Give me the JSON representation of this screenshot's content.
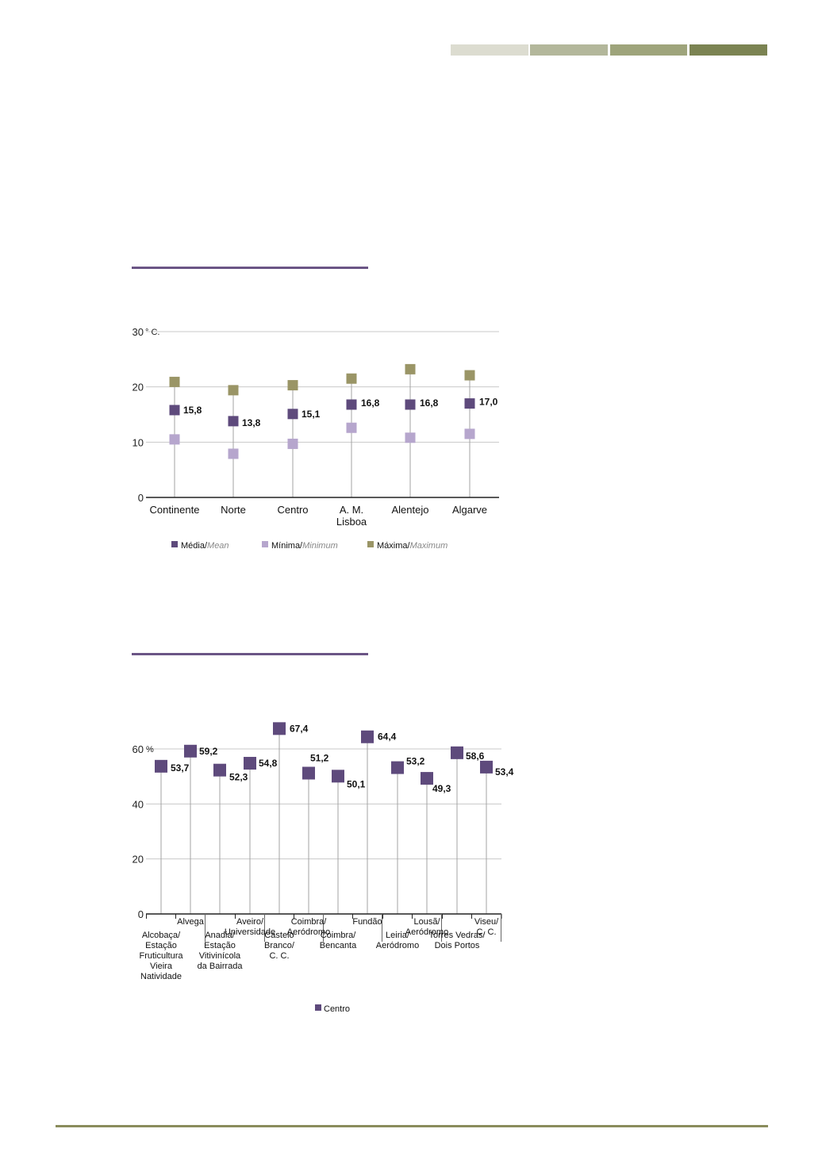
{
  "header": {
    "strip_colors": [
      "#dcdcd0",
      "#b3b79b",
      "#9ea47b",
      "#7b8352"
    ]
  },
  "colors": {
    "mean": "#5e4a7c",
    "minimum": "#b6a6cd",
    "maximum": "#9a9566",
    "rule": "#6b5585",
    "footer": "#8a8c5c"
  },
  "chart_data": [
    {
      "type": "scatter",
      "title": "",
      "ylabel": "° C.",
      "ylim": [
        0,
        30
      ],
      "yticks": [
        0,
        10,
        20,
        30
      ],
      "ytick_labels": [
        "0",
        "10",
        "20",
        "30"
      ],
      "grid": true,
      "legend_position": "bottom",
      "categories": [
        "Continente",
        "Norte",
        "Centro",
        "A. M. Lisboa",
        "Alentejo",
        "Algarve"
      ],
      "category_labels": [
        [
          "Continente"
        ],
        [
          "Norte"
        ],
        [
          "Centro"
        ],
        [
          "A. M.",
          "Lisboa"
        ],
        [
          "Alentejo"
        ],
        [
          "Algarve"
        ]
      ],
      "series": [
        {
          "name": "Média/",
          "name_en": "Mean",
          "key": "mean",
          "values": [
            15.8,
            13.8,
            15.1,
            16.8,
            16.8,
            17.0
          ],
          "labels": [
            "15,8",
            "13,8",
            "15,1",
            "16,8",
            "16,8",
            "17,0"
          ]
        },
        {
          "name": "Mínima/",
          "name_en": "Minimum",
          "key": "minimum",
          "values": [
            10.5,
            7.9,
            9.7,
            12.6,
            10.8,
            11.5
          ]
        },
        {
          "name": "Máxima/",
          "name_en": "Maximum",
          "key": "maximum",
          "values": [
            20.9,
            19.4,
            20.3,
            21.5,
            23.2,
            22.1
          ]
        }
      ]
    },
    {
      "type": "scatter",
      "title": "",
      "ylabel": "%",
      "ylim": [
        0,
        60
      ],
      "yticks": [
        0,
        20,
        40,
        60
      ],
      "ytick_labels": [
        "0",
        "20",
        "40",
        "60"
      ],
      "grid": true,
      "legend_position": "bottom",
      "categories": [
        "Alcobaça/Estação Fruticultura Vieira Natividade",
        "Alvega",
        "Anadia/Estação Vitivinícola da Bairrada",
        "Aveiro/Universidade",
        "Castelo Branco/C. C.",
        "Coimbra/Aeródromo",
        "Coimbra/Bencanta",
        "Fundão",
        "Leiria/Aeródromo",
        "Lousã/Aeródromo",
        "Torres Vedras/Dois Portos",
        "Viseu/C. C."
      ],
      "category_labels": [
        [
          "Alcobaça/",
          "Estação",
          "Fruticultura",
          "Vieira",
          "Natividade"
        ],
        [
          "Alvega"
        ],
        [
          "Anadia/",
          "Estação",
          "Vitivinícola",
          "da Bairrada"
        ],
        [
          "Aveiro/",
          "Universidade"
        ],
        [
          "Castelo",
          "Branco/",
          "C. C."
        ],
        [
          "Coimbra/",
          "Aeródromo"
        ],
        [
          "Coimbra/",
          "Bencanta"
        ],
        [
          "Fundão"
        ],
        [
          "Leiria/",
          "Aeródromo"
        ],
        [
          "Lousã/",
          "Aeródromo"
        ],
        [
          "Torres Vedras/",
          "Dois Portos"
        ],
        [
          "Viseu/",
          "C. C."
        ]
      ],
      "series": [
        {
          "name": "Centro",
          "key": "mean",
          "values": [
            53.7,
            59.2,
            52.3,
            54.8,
            67.4,
            51.2,
            50.1,
            64.4,
            53.2,
            49.3,
            58.6,
            53.4
          ],
          "labels": [
            "53,7",
            "59,2",
            "52,3",
            "54,8",
            "67,4",
            "51,2",
            "50,1",
            "64,4",
            "53,2",
            "49,3",
            "58,6",
            "53,4"
          ]
        }
      ]
    }
  ]
}
